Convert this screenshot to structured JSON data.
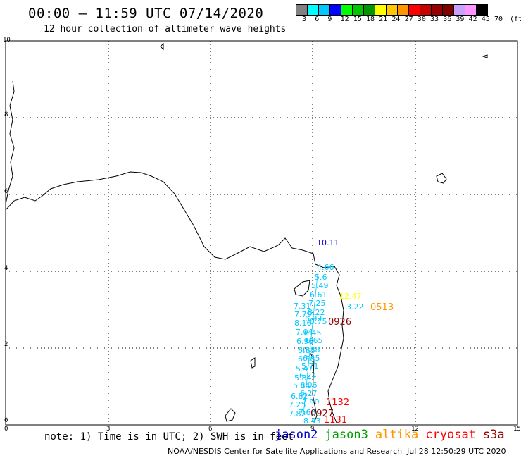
{
  "header": {
    "title": "00:00 – 11:59 UTC 07/14/2020",
    "subtitle": "12 hour collection of altimeter wave heights"
  },
  "scale": {
    "colors": [
      "#808080",
      "#00ffff",
      "#00c8ff",
      "#0000ff",
      "#00ff00",
      "#00c800",
      "#009600",
      "#ffff00",
      "#ffc800",
      "#ff9600",
      "#ff0000",
      "#c80000",
      "#960000",
      "#800000",
      "#c8a0ff",
      "#ff96ff",
      "#000000"
    ],
    "labels": [
      "3",
      "6",
      "9",
      "12",
      "15",
      "18",
      "21",
      "24",
      "27",
      "30",
      "33",
      "36",
      "39",
      "42",
      "45",
      "70"
    ],
    "unit": "(ft)"
  },
  "axes": {
    "x_ticks": [
      "0",
      "3",
      "6",
      "9",
      "12",
      "15"
    ],
    "y_ticks": [
      "0",
      "2",
      "4",
      "6",
      "8",
      "10"
    ]
  },
  "observations": [
    {
      "v": "10.11",
      "c": "#0000c8"
    },
    {
      "v": "4.66",
      "c": "#00c8ff"
    },
    {
      "v": "5.6",
      "c": "#00c8ff"
    },
    {
      "v": "5.49",
      "c": "#00c8ff"
    },
    {
      "v": "6.61",
      "c": "#00c8ff"
    },
    {
      "v": "7.25",
      "c": "#00c8ff"
    },
    {
      "v": "7.31",
      "c": "#00c8ff"
    },
    {
      "v": "7.79",
      "c": "#00c8ff"
    },
    {
      "v": "8.22",
      "c": "#00c8ff"
    },
    {
      "v": "8.16",
      "c": "#00c8ff"
    },
    {
      "v": "8.75",
      "c": "#00c8ff"
    },
    {
      "v": "6.92",
      "c": "#00c8ff"
    },
    {
      "v": "7.04",
      "c": "#00c8ff"
    },
    {
      "v": "6.45",
      "c": "#00c8ff"
    },
    {
      "v": "6.98",
      "c": "#00c8ff"
    },
    {
      "v": "6.65",
      "c": "#00c8ff"
    },
    {
      "v": "6.88",
      "c": "#00c8ff"
    },
    {
      "v": "6.38",
      "c": "#00c8ff"
    },
    {
      "v": "6.58",
      "c": "#00c8ff"
    },
    {
      "v": "6.45",
      "c": "#00c8ff"
    },
    {
      "v": "5.47",
      "c": "#00c8ff"
    },
    {
      "v": "5.71",
      "c": "#00c8ff"
    },
    {
      "v": "5.84",
      "c": "#00c8ff"
    },
    {
      "v": "6.24",
      "c": "#00c8ff"
    },
    {
      "v": "5.84",
      "c": "#00c8ff"
    },
    {
      "v": "6.06",
      "c": "#00c8ff"
    },
    {
      "v": "6.82",
      "c": "#00c8ff"
    },
    {
      "v": "6.27",
      "c": "#00c8ff"
    },
    {
      "v": "7.25",
      "c": "#00c8ff"
    },
    {
      "v": "7.90",
      "c": "#00c8ff"
    },
    {
      "v": "7.82",
      "c": "#00c8ff"
    },
    {
      "v": "7.66",
      "c": "#00c8ff"
    },
    {
      "v": "8.43",
      "c": "#00c8ff"
    },
    {
      "v": "3.22",
      "c": "#00c8ff"
    },
    {
      "v": "12.47",
      "c": "#ffff00"
    },
    {
      "v": "0513",
      "c": "#ff9600"
    },
    {
      "v": "0926",
      "c": "#960000"
    },
    {
      "v": "1132",
      "c": "#ff0000"
    },
    {
      "v": "0927",
      "c": "#960000"
    },
    {
      "v": "1131",
      "c": "#ff0000"
    }
  ],
  "footer": {
    "note": "note: 1) Time is in UTC; 2) SWH is in feet",
    "satellites": [
      {
        "name": "jason2",
        "color": "#0000c8"
      },
      {
        "name": "jason3",
        "color": "#00a000"
      },
      {
        "name": "altika",
        "color": "#ff9600"
      },
      {
        "name": "cryosat",
        "color": "#ff0000"
      },
      {
        "name": "s3a",
        "color": "#960000"
      }
    ],
    "credit": "NOAA/NESDIS Center for Satellite Applications and Research",
    "generated": "Jul 28 12:50:29 UTC 2020"
  }
}
